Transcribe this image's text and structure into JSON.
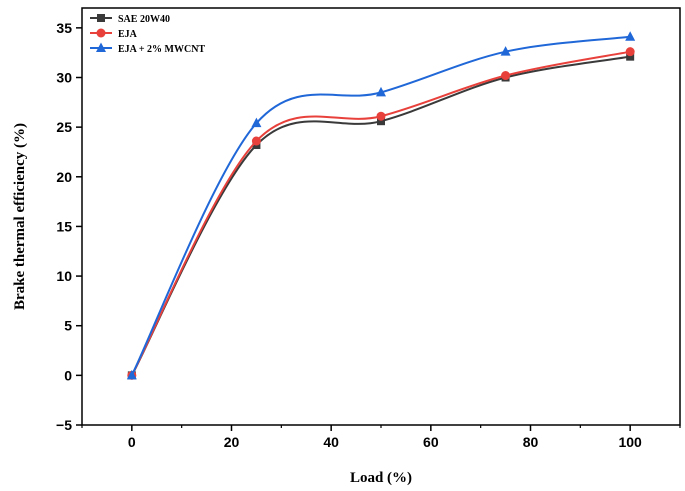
{
  "chart_data": {
    "type": "line",
    "title": "",
    "xlabel": "Load (%)",
    "ylabel": "Brake thermal efficiency (%)",
    "xlim": [
      -10,
      110
    ],
    "ylim": [
      -5,
      37
    ],
    "xticks": [
      0,
      20,
      40,
      60,
      80,
      100
    ],
    "yticks": [
      -5,
      0,
      5,
      10,
      15,
      20,
      25,
      30,
      35
    ],
    "grid": false,
    "legend_position": "top-left",
    "x": [
      0,
      25,
      50,
      75,
      100
    ],
    "series": [
      {
        "name": "SAE 20W40",
        "values": [
          0,
          23.2,
          25.6,
          30.0,
          32.1
        ],
        "color": "#3a3a3a",
        "marker": "square"
      },
      {
        "name": "EJA",
        "values": [
          0,
          23.6,
          26.1,
          30.2,
          32.6
        ],
        "color": "#e8413c",
        "marker": "circle"
      },
      {
        "name": "EJA + 2% MWCNT",
        "values": [
          0,
          25.4,
          28.5,
          32.6,
          34.1
        ],
        "color": "#2067d8",
        "marker": "triangle"
      }
    ]
  }
}
